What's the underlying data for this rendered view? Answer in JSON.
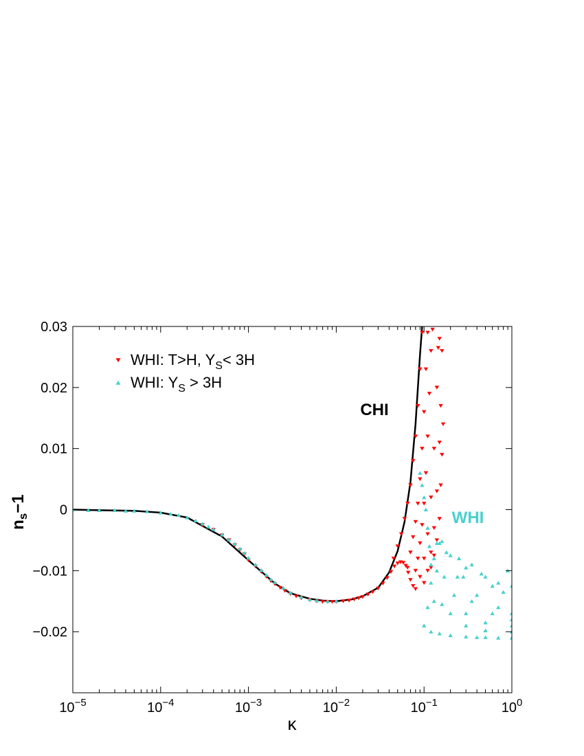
{
  "chart_data": {
    "type": "scatter",
    "xlabel": "κ",
    "ylabel_main": "n",
    "ylabel_sub": "s",
    "ylabel_tail": "−1",
    "x_scale": "log",
    "xlim": [
      1e-05,
      1
    ],
    "ylim": [
      -0.03,
      0.03
    ],
    "grid": false,
    "x_ticks": [
      {
        "value": 1e-05,
        "base": "10",
        "exp": "−5"
      },
      {
        "value": 0.0001,
        "base": "10",
        "exp": "−4"
      },
      {
        "value": 0.001,
        "base": "10",
        "exp": "−3"
      },
      {
        "value": 0.01,
        "base": "10",
        "exp": "−2"
      },
      {
        "value": 0.1,
        "base": "10",
        "exp": "−1"
      },
      {
        "value": 1,
        "base": "10",
        "exp": "0"
      }
    ],
    "y_ticks": [
      {
        "value": 0.03,
        "label": "0.03"
      },
      {
        "value": 0.02,
        "label": "0.02"
      },
      {
        "value": 0.01,
        "label": "0.01"
      },
      {
        "value": 0,
        "label": "0"
      },
      {
        "value": -0.01,
        "label": "−0.01"
      },
      {
        "value": -0.02,
        "label": "−0.02"
      }
    ],
    "legend": {
      "placement": "top-left",
      "entries": [
        {
          "pre": "WHI: T>H,  Y",
          "sub": "S",
          "post": "< 3H",
          "marker": "triangle-down",
          "color": "#ff0000"
        },
        {
          "pre": "WHI: Y",
          "sub": "S",
          "post": " > 3H",
          "marker": "triangle-up",
          "color": "#48d1cc"
        }
      ]
    },
    "annotations": [
      {
        "text": "CHI",
        "x": 0.022,
        "y": 0.0162,
        "color": "#000000"
      },
      {
        "text": "WHI",
        "x": 0.27,
        "y": -0.0014,
        "color": "#48d1cc"
      }
    ],
    "series": [
      {
        "label": "CHI",
        "kind": "line",
        "color": "#000000",
        "points": [
          [
            1e-05,
            0.0
          ],
          [
            2e-05,
            -0.0001
          ],
          [
            5e-05,
            -0.0002
          ],
          [
            0.0001,
            -0.0005
          ],
          [
            0.0002,
            -0.0013
          ],
          [
            0.0005,
            -0.0044
          ],
          [
            0.001,
            -0.0083
          ],
          [
            0.002,
            -0.0121
          ],
          [
            0.003,
            -0.0137
          ],
          [
            0.005,
            -0.0146
          ],
          [
            0.007,
            -0.0149
          ],
          [
            0.01,
            -0.015
          ],
          [
            0.015,
            -0.0147
          ],
          [
            0.02,
            -0.0142
          ],
          [
            0.03,
            -0.0128
          ],
          [
            0.04,
            -0.0103
          ],
          [
            0.05,
            -0.0068
          ],
          [
            0.06,
            -0.002
          ],
          [
            0.07,
            0.0045
          ],
          [
            0.08,
            0.014
          ],
          [
            0.09,
            0.0255
          ],
          [
            0.095,
            0.03
          ]
        ]
      },
      {
        "label": "WHI: T>H, Y_S< 3H",
        "kind": "scatter",
        "marker": "triangle-down",
        "color": "#ff0000",
        "points": [
          [
            0.0003,
            -0.0025
          ],
          [
            0.0004,
            -0.0033
          ],
          [
            0.0005,
            -0.0042
          ],
          [
            0.0006,
            -0.005
          ],
          [
            0.0007,
            -0.0058
          ],
          [
            0.0008,
            -0.0066
          ],
          [
            0.0009,
            -0.0073
          ],
          [
            0.001,
            -0.0083
          ],
          [
            0.0012,
            -0.0093
          ],
          [
            0.0014,
            -0.0102
          ],
          [
            0.0016,
            -0.011
          ],
          [
            0.0018,
            -0.0117
          ],
          [
            0.002,
            -0.0122
          ],
          [
            0.0023,
            -0.0128
          ],
          [
            0.0026,
            -0.0133
          ],
          [
            0.003,
            -0.0138
          ],
          [
            0.0035,
            -0.0142
          ],
          [
            0.004,
            -0.0145
          ],
          [
            0.005,
            -0.0148
          ],
          [
            0.006,
            -0.015
          ],
          [
            0.007,
            -0.0151
          ],
          [
            0.008,
            -0.0151
          ],
          [
            0.009,
            -0.0151
          ],
          [
            0.01,
            -0.0151
          ],
          [
            0.012,
            -0.015
          ],
          [
            0.014,
            -0.0149
          ],
          [
            0.016,
            -0.0147
          ],
          [
            0.018,
            -0.0145
          ],
          [
            0.02,
            -0.0143
          ],
          [
            0.023,
            -0.0139
          ],
          [
            0.026,
            -0.0135
          ],
          [
            0.03,
            -0.0129
          ],
          [
            0.034,
            -0.0121
          ],
          [
            0.038,
            -0.0112
          ],
          [
            0.042,
            -0.0102
          ],
          [
            0.046,
            -0.0093
          ],
          [
            0.05,
            -0.0088
          ],
          [
            0.054,
            -0.0086
          ],
          [
            0.058,
            -0.0087
          ],
          [
            0.062,
            -0.0092
          ],
          [
            0.066,
            -0.0103
          ],
          [
            0.07,
            -0.0115
          ],
          [
            0.075,
            -0.0125
          ],
          [
            0.08,
            -0.013
          ],
          [
            0.045,
            -0.008
          ],
          [
            0.05,
            -0.006
          ],
          [
            0.055,
            -0.004
          ],
          [
            0.06,
            -0.0015
          ],
          [
            0.065,
            0.001
          ],
          [
            0.07,
            0.004
          ],
          [
            0.075,
            0.008
          ],
          [
            0.08,
            0.012
          ],
          [
            0.085,
            0.017
          ],
          [
            0.09,
            0.023
          ],
          [
            0.095,
            0.029
          ],
          [
            0.065,
            -0.0095
          ],
          [
            0.07,
            -0.007
          ],
          [
            0.075,
            -0.0045
          ],
          [
            0.08,
            -0.002
          ],
          [
            0.085,
            0.001
          ],
          [
            0.09,
            0.005
          ],
          [
            0.095,
            0.01
          ],
          [
            0.1,
            0.016
          ],
          [
            0.105,
            0.023
          ],
          [
            0.11,
            0.029
          ],
          [
            0.08,
            -0.01
          ],
          [
            0.085,
            -0.008
          ],
          [
            0.09,
            -0.0055
          ],
          [
            0.095,
            -0.0025
          ],
          [
            0.1,
            0.001
          ],
          [
            0.105,
            0.006
          ],
          [
            0.11,
            0.012
          ],
          [
            0.115,
            0.019
          ],
          [
            0.12,
            0.026
          ],
          [
            0.125,
            0.0295
          ],
          [
            0.09,
            -0.011
          ],
          [
            0.1,
            -0.008
          ],
          [
            0.11,
            -0.004
          ],
          [
            0.12,
            0.002
          ],
          [
            0.13,
            0.01
          ],
          [
            0.14,
            0.02
          ],
          [
            0.145,
            0.0265
          ],
          [
            0.15,
            0.028
          ],
          [
            0.1,
            -0.012
          ],
          [
            0.11,
            -0.01
          ],
          [
            0.12,
            -0.007
          ],
          [
            0.13,
            -0.003
          ],
          [
            0.14,
            0.003
          ],
          [
            0.15,
            0.011
          ],
          [
            0.155,
            0.017
          ],
          [
            0.16,
            0.026
          ],
          [
            0.12,
            -0.0095
          ],
          [
            0.13,
            -0.0075
          ],
          [
            0.14,
            -0.005
          ],
          [
            0.15,
            -0.0015
          ],
          [
            0.155,
            0.004
          ],
          [
            0.16,
            0.009
          ],
          [
            0.165,
            0.014
          ]
        ]
      },
      {
        "label": "WHI: Y_S > 3H",
        "kind": "scatter",
        "marker": "triangle-up",
        "color": "#48d1cc",
        "points": [
          [
            1e-05,
            0.0
          ],
          [
            1.5e-05,
            -0.0001
          ],
          [
            2e-05,
            -0.0001
          ],
          [
            3e-05,
            -0.0001
          ],
          [
            4e-05,
            -0.0002
          ],
          [
            5e-05,
            -0.0002
          ],
          [
            7e-05,
            -0.0003
          ],
          [
            0.0001,
            -0.0005
          ],
          [
            0.00013,
            -0.0007
          ],
          [
            0.00016,
            -0.0009
          ],
          [
            0.0002,
            -0.0013
          ],
          [
            0.00025,
            -0.0018
          ],
          [
            0.0003,
            -0.0023
          ],
          [
            0.00035,
            -0.0028
          ],
          [
            0.0004,
            -0.0032
          ],
          [
            0.0005,
            -0.0041
          ],
          [
            0.0006,
            -0.0049
          ],
          [
            0.0007,
            -0.0056
          ],
          [
            0.0008,
            -0.0064
          ],
          [
            0.0009,
            -0.0071
          ],
          [
            0.001,
            -0.0079
          ],
          [
            0.0012,
            -0.009
          ],
          [
            0.0014,
            -0.0099
          ],
          [
            0.0016,
            -0.0107
          ],
          [
            0.0018,
            -0.0114
          ],
          [
            0.002,
            -0.0119
          ],
          [
            0.0025,
            -0.0128
          ],
          [
            0.003,
            -0.0136
          ],
          [
            0.004,
            -0.0143
          ],
          [
            0.005,
            -0.0147
          ],
          [
            0.006,
            -0.0149
          ],
          [
            0.008,
            -0.015
          ],
          [
            0.01,
            -0.015
          ],
          [
            0.1,
            -0.019
          ],
          [
            0.12,
            -0.02
          ],
          [
            0.15,
            -0.0203
          ],
          [
            0.2,
            -0.0206
          ],
          [
            0.3,
            -0.0208
          ],
          [
            0.4,
            -0.0209
          ],
          [
            0.5,
            -0.0209
          ],
          [
            0.7,
            -0.021
          ],
          [
            1.0,
            -0.021
          ],
          [
            0.11,
            -0.016
          ],
          [
            0.13,
            -0.015
          ],
          [
            0.16,
            -0.0155
          ],
          [
            0.2,
            -0.017
          ],
          [
            0.3,
            -0.019
          ],
          [
            0.5,
            -0.0198
          ],
          [
            1.0,
            -0.02
          ],
          [
            0.12,
            -0.012
          ],
          [
            0.14,
            -0.01
          ],
          [
            0.17,
            -0.011
          ],
          [
            0.22,
            -0.014
          ],
          [
            0.3,
            -0.017
          ],
          [
            0.5,
            -0.0185
          ],
          [
            1.0,
            -0.019
          ],
          [
            0.13,
            -0.008
          ],
          [
            0.15,
            -0.0055
          ],
          [
            0.18,
            -0.007
          ],
          [
            0.24,
            -0.011
          ],
          [
            0.35,
            -0.015
          ],
          [
            0.6,
            -0.017
          ],
          [
            1.0,
            -0.018
          ],
          [
            0.14,
            -0.0055
          ],
          [
            0.16,
            -0.0052
          ],
          [
            0.2,
            -0.0075
          ],
          [
            0.28,
            -0.011
          ],
          [
            0.4,
            -0.014
          ],
          [
            0.7,
            -0.016
          ],
          [
            1.0,
            -0.017
          ],
          [
            0.09,
            0.006
          ],
          [
            0.095,
            0.004
          ],
          [
            0.1,
            0.002
          ],
          [
            0.105,
            0.0
          ],
          [
            0.11,
            -0.003
          ],
          [
            0.115,
            -0.006
          ],
          [
            0.12,
            -0.009
          ],
          [
            0.25,
            -0.008
          ],
          [
            0.35,
            -0.009
          ],
          [
            0.5,
            -0.011
          ],
          [
            0.7,
            -0.012
          ],
          [
            0.9,
            -0.01
          ],
          [
            1.0,
            -0.0125
          ],
          [
            0.8,
            -0.0135
          ],
          [
            0.6,
            -0.0125
          ],
          [
            0.45,
            -0.0105
          ],
          [
            0.3,
            -0.0095
          ]
        ]
      }
    ]
  }
}
